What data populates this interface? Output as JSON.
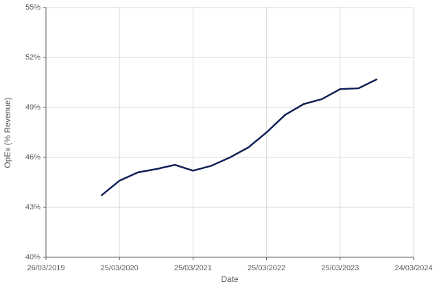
{
  "chart_data": {
    "type": "line",
    "x_label": "Date",
    "y_label": "OpEx (% Revenue)",
    "x": [
      "2019-12-25",
      "2020-03-25",
      "2020-06-25",
      "2020-09-25",
      "2020-12-25",
      "2021-03-25",
      "2021-06-25",
      "2021-09-25",
      "2021-12-25",
      "2022-03-25",
      "2022-06-25",
      "2022-09-25",
      "2022-12-25",
      "2023-03-25",
      "2023-06-25",
      "2023-09-25"
    ],
    "series": [
      {
        "color": "#0e1f56",
        "values": [
          43.7,
          44.6,
          45.1,
          45.3,
          45.55,
          45.2,
          45.5,
          46.0,
          46.6,
          47.5,
          48.55,
          49.2,
          49.5,
          50.1,
          50.15,
          50.7
        ]
      }
    ],
    "xlim": [
      "2019-03-26",
      "2024-03-24"
    ],
    "xticks": [
      {
        "value": "2019-03-26",
        "label": "26/03/2019"
      },
      {
        "value": "2020-03-25",
        "label": "25/03/2020"
      },
      {
        "value": "2021-03-25",
        "label": "25/03/2021"
      },
      {
        "value": "2022-03-25",
        "label": "25/03/2022"
      },
      {
        "value": "2023-03-25",
        "label": "25/03/2023"
      },
      {
        "value": "2024-03-24",
        "label": "24/03/2024"
      }
    ],
    "ylim": [
      40,
      55
    ],
    "yticks": [
      {
        "value": 40,
        "label": "40%"
      },
      {
        "value": 43,
        "label": "43%"
      },
      {
        "value": 46,
        "label": "46%"
      },
      {
        "value": 49,
        "label": "49%"
      },
      {
        "value": 52,
        "label": "52%"
      },
      {
        "value": 55,
        "label": "55%"
      }
    ],
    "grid": true
  }
}
